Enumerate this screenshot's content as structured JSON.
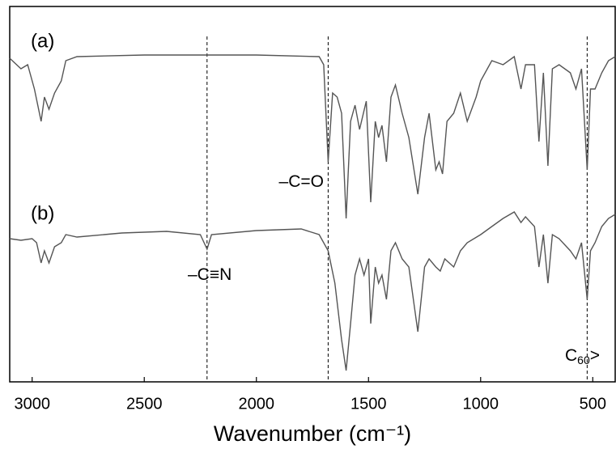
{
  "chart_data": {
    "type": "line",
    "xlabel": "Wavenumber (cm⁻¹)",
    "xlim": [
      3100,
      400
    ],
    "xticks": [
      3000,
      2500,
      2000,
      1500,
      1000,
      500
    ],
    "ylim": [
      0,
      464
    ],
    "markers": [
      2220,
      1680,
      525
    ],
    "annotations": [
      {
        "text": "–C=O",
        "at": 1680
      },
      {
        "text": "–C≡N",
        "at": 2220
      },
      {
        "text": "C",
        "sub": "60",
        "tail": ">",
        "at": 525
      }
    ],
    "series": [
      {
        "name": "(a)",
        "color": "#555555",
        "x": [
          3100,
          3050,
          3020,
          2990,
          2960,
          2945,
          2925,
          2900,
          2870,
          2850,
          2800,
          2500,
          2000,
          1720,
          1700,
          1680,
          1660,
          1640,
          1620,
          1600,
          1580,
          1560,
          1540,
          1510,
          1490,
          1470,
          1455,
          1440,
          1420,
          1400,
          1380,
          1350,
          1320,
          1280,
          1250,
          1230,
          1200,
          1185,
          1170,
          1150,
          1120,
          1090,
          1060,
          1020,
          1000,
          950,
          900,
          850,
          820,
          800,
          760,
          740,
          720,
          700,
          680,
          650,
          600,
          575,
          550,
          525,
          510,
          490,
          460,
          430,
          400
        ],
        "values": [
          400,
          387,
          392,
          362,
          322,
          352,
          337,
          357,
          372,
          397,
          402,
          404,
          404,
          402,
          392,
          272,
          357,
          352,
          332,
          202,
          322,
          342,
          312,
          347,
          222,
          322,
          302,
          317,
          272,
          352,
          367,
          332,
          302,
          232,
          302,
          332,
          262,
          272,
          257,
          322,
          332,
          357,
          322,
          352,
          372,
          397,
          392,
          402,
          362,
          392,
          392,
          297,
          382,
          267,
          387,
          392,
          382,
          362,
          387,
          262,
          362,
          362,
          382,
          397,
          402
        ]
      },
      {
        "name": "(b)",
        "color": "#555555",
        "x": [
          3100,
          3050,
          3000,
          2980,
          2960,
          2945,
          2925,
          2900,
          2870,
          2850,
          2800,
          2600,
          2400,
          2250,
          2220,
          2200,
          2000,
          1800,
          1720,
          1680,
          1650,
          1620,
          1600,
          1580,
          1560,
          1540,
          1520,
          1500,
          1490,
          1470,
          1455,
          1440,
          1420,
          1400,
          1380,
          1350,
          1320,
          1280,
          1250,
          1230,
          1200,
          1180,
          1160,
          1120,
          1090,
          1060,
          1000,
          950,
          900,
          850,
          820,
          800,
          760,
          740,
          720,
          700,
          680,
          650,
          600,
          575,
          550,
          525,
          510,
          490,
          460,
          430,
          400
        ],
        "values": [
          177,
          175,
          177,
          172,
          147,
          162,
          147,
          167,
          172,
          182,
          179,
          184,
          186,
          182,
          164,
          182,
          187,
          189,
          182,
          162,
          122,
          52,
          14,
          72,
          132,
          152,
          132,
          152,
          72,
          142,
          122,
          132,
          102,
          162,
          172,
          152,
          142,
          62,
          142,
          152,
          142,
          137,
          152,
          142,
          162,
          172,
          182,
          192,
          202,
          210,
          197,
          204,
          192,
          142,
          182,
          122,
          182,
          177,
          162,
          152,
          172,
          102,
          162,
          172,
          192,
          202,
          207
        ]
      }
    ]
  }
}
